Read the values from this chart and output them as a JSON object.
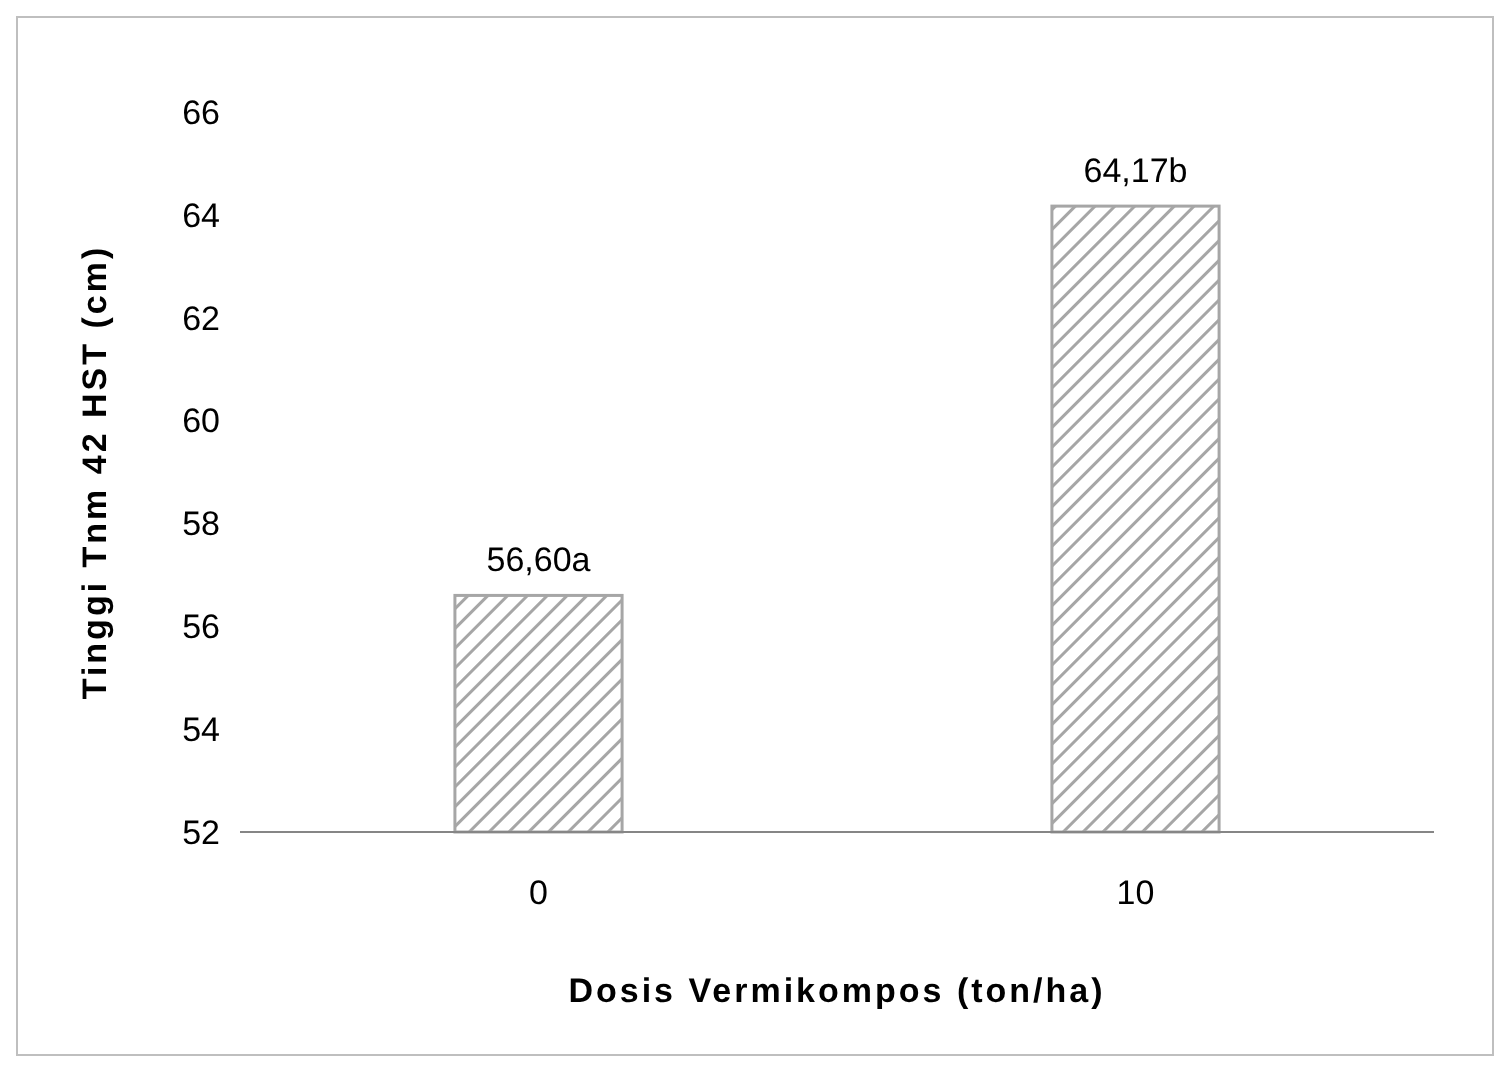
{
  "chart_data": {
    "type": "bar",
    "xlabel": "Dosis Vermikompos (ton/ha)",
    "ylabel": "Tinggi Tnm 42 HST (cm)",
    "categories": [
      "0",
      "10"
    ],
    "values": [
      56.6,
      64.17
    ],
    "value_labels": [
      "56,60a",
      "64,17b"
    ],
    "color": "#a6a6a6",
    "ylim": [
      52,
      66
    ],
    "yticks": [
      52,
      54,
      56,
      58,
      60,
      62,
      64,
      66
    ],
    "grid": false
  }
}
